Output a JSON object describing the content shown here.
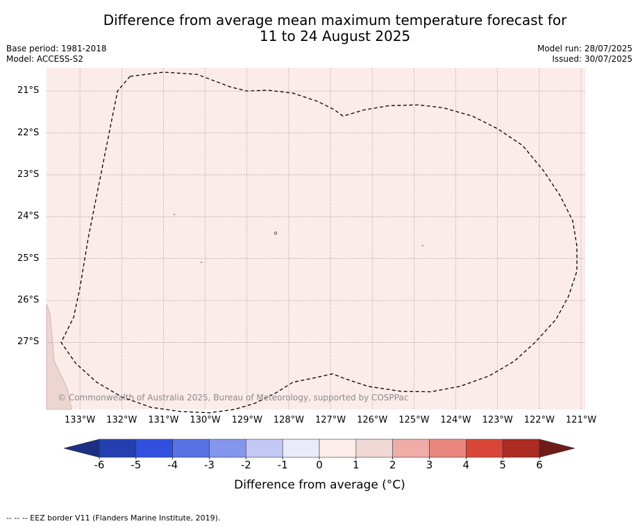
{
  "title_line1": "Difference from average mean maximum temperature forecast for",
  "title_line2": "11 to 24 August 2025",
  "meta_left": {
    "base_period": "Base period: 1981-2018",
    "model": "Model: ACCESS-S2"
  },
  "meta_right": {
    "model_run": "Model run: 28/07/2025",
    "issued": "Issued: 30/07/2025"
  },
  "map": {
    "background_color": "#fbebe9",
    "land_color": "#edd5d1",
    "lat_labels": [
      "21°S",
      "22°S",
      "23°S",
      "24°S",
      "25°S",
      "26°S",
      "27°S"
    ],
    "lat_values": [
      -21,
      -22,
      -23,
      -24,
      -25,
      -26,
      -27
    ],
    "lon_labels": [
      "133°W",
      "132°W",
      "131°W",
      "130°W",
      "129°W",
      "128°W",
      "127°W",
      "126°W",
      "125°W",
      "124°W",
      "123°W",
      "122°W",
      "121°W"
    ],
    "lon_values": [
      -133,
      -132,
      -131,
      -130,
      -129,
      -128,
      -127,
      -126,
      -125,
      -124,
      -123,
      -122,
      -121
    ],
    "lon_range": [
      -133.8,
      -120.9
    ],
    "lat_range": [
      -28.6,
      -20.45
    ]
  },
  "eez_border_lonlat": [
    [
      -131.8,
      -20.65
    ],
    [
      -131.0,
      -20.55
    ],
    [
      -130.2,
      -20.6
    ],
    [
      -129.4,
      -20.9
    ],
    [
      -129.0,
      -21.0
    ],
    [
      -128.5,
      -20.98
    ],
    [
      -127.9,
      -21.05
    ],
    [
      -127.3,
      -21.25
    ],
    [
      -126.9,
      -21.45
    ],
    [
      -126.7,
      -21.6
    ],
    [
      -126.2,
      -21.45
    ],
    [
      -125.6,
      -21.35
    ],
    [
      -124.9,
      -21.33
    ],
    [
      -124.3,
      -21.4
    ],
    [
      -123.6,
      -21.6
    ],
    [
      -123.0,
      -21.9
    ],
    [
      -122.4,
      -22.3
    ],
    [
      -121.9,
      -22.9
    ],
    [
      -121.5,
      -23.5
    ],
    [
      -121.2,
      -24.1
    ],
    [
      -121.1,
      -24.7
    ],
    [
      -121.1,
      -25.3
    ],
    [
      -121.3,
      -25.9
    ],
    [
      -121.6,
      -26.45
    ],
    [
      -122.1,
      -27.0
    ],
    [
      -122.6,
      -27.45
    ],
    [
      -123.2,
      -27.8
    ],
    [
      -123.9,
      -28.05
    ],
    [
      -124.6,
      -28.18
    ],
    [
      -125.3,
      -28.17
    ],
    [
      -126.1,
      -28.05
    ],
    [
      -126.7,
      -27.85
    ],
    [
      -126.95,
      -27.75
    ],
    [
      -127.4,
      -27.85
    ],
    [
      -127.9,
      -27.95
    ],
    [
      -128.3,
      -28.2
    ],
    [
      -128.8,
      -28.45
    ],
    [
      -129.3,
      -28.6
    ],
    [
      -129.9,
      -28.68
    ],
    [
      -130.6,
      -28.65
    ],
    [
      -131.3,
      -28.55
    ],
    [
      -132.0,
      -28.3
    ],
    [
      -132.6,
      -27.95
    ],
    [
      -133.1,
      -27.5
    ],
    [
      -133.45,
      -27.0
    ],
    [
      -133.15,
      -26.4
    ],
    [
      -133.0,
      -25.7
    ],
    [
      -132.8,
      -24.5
    ],
    [
      -132.5,
      -23.0
    ],
    [
      -132.3,
      -22.0
    ],
    [
      -132.1,
      -21.0
    ],
    [
      -131.8,
      -20.65
    ]
  ],
  "colorbar": {
    "ticks": [
      "-6",
      "-5",
      "-4",
      "-3",
      "-2",
      "-1",
      "0",
      "1",
      "2",
      "3",
      "4",
      "5",
      "6"
    ],
    "colors": [
      "#2440b0",
      "#3150e2",
      "#5873e4",
      "#8497ec",
      "#c3c9f4",
      "#e9ebfb",
      "#fdeeec",
      "#f0d8d4",
      "#f0ada8",
      "#e8877f",
      "#d9473a",
      "#ac2b22"
    ],
    "under_color": "#1c2f82",
    "over_color": "#6e1c17",
    "label": "Difference from average ($^\\circ$C)",
    "label_display": "Difference from average (°C)"
  },
  "copyright": "© Commonwealth of Australia 2025, Bureau of Meteorology, supported by COSPPac",
  "footer": "--  --  -- EEZ border V11 (Flanders Marine Institute, 2019)."
}
